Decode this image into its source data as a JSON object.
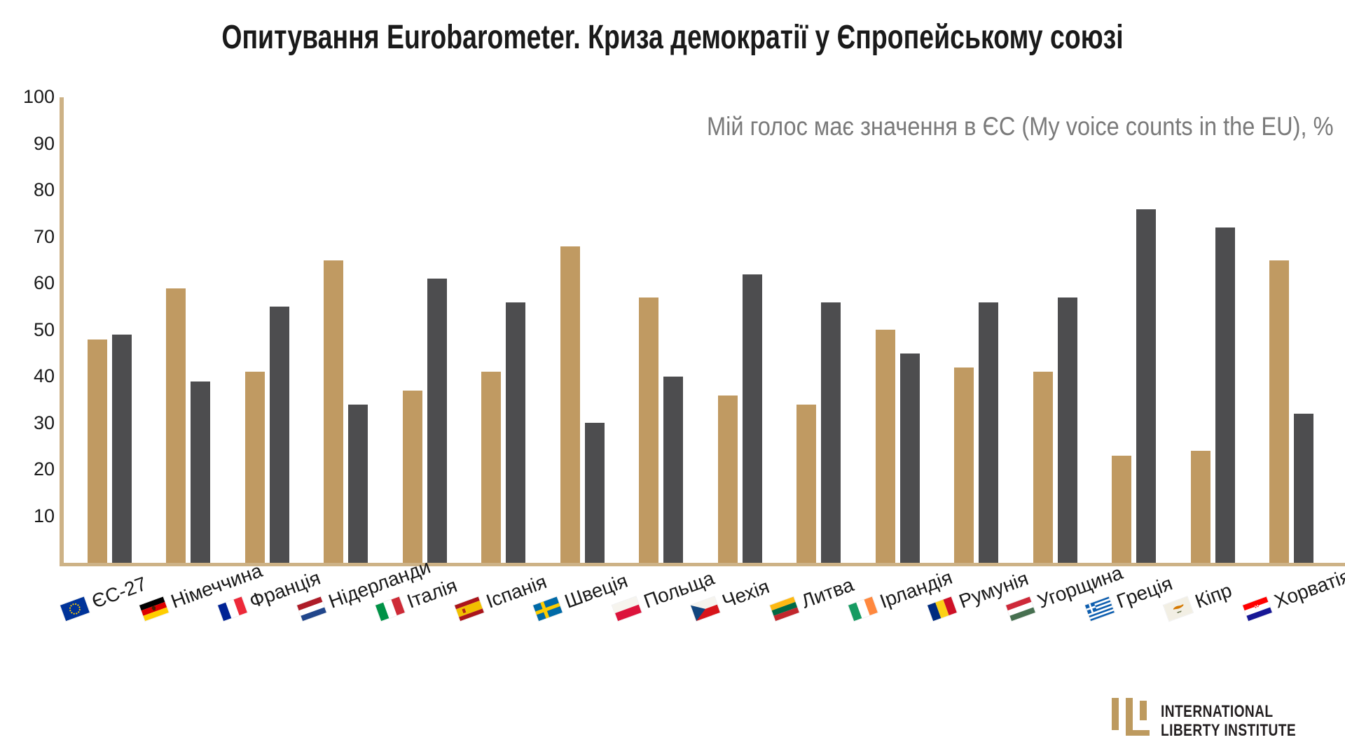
{
  "title": "Опитування Eurobarometer. Криза демократії у Єпропейському союзі",
  "subtitle": "Мій голос має значення в ЄС (My voice counts in the EU), %",
  "colors": {
    "series1_tan": "#C09A62",
    "series2_dark": "#4D4D4F",
    "axis_line": "#CDB286",
    "title_text": "#1A1A1A",
    "subtitle_text": "#7A7A7A",
    "logo_mark": "#BD9A5F",
    "logo_text": "#231F20"
  },
  "chart_data": {
    "type": "bar",
    "title": "Опитування Eurobarometer. Криза демократії у Єпропейському союзі",
    "annotation": "Мій голос має значення в ЄС (My voice counts in the EU), %",
    "ylim": [
      0,
      100
    ],
    "yticks": [
      10,
      20,
      30,
      40,
      50,
      60,
      70,
      80,
      90,
      100
    ],
    "grid": false,
    "legend": "none",
    "categories": [
      {
        "label": "ЄС-27",
        "flag": "flag-eu"
      },
      {
        "label": "Німеччина",
        "flag": "flag-germany"
      },
      {
        "label": "Франція",
        "flag": "flag-france"
      },
      {
        "label": "Нідерланди",
        "flag": "flag-netherlands"
      },
      {
        "label": "Італія",
        "flag": "flag-italy"
      },
      {
        "label": "Іспанія",
        "flag": "flag-spain"
      },
      {
        "label": "Швеція",
        "flag": "flag-sweden"
      },
      {
        "label": "Польща",
        "flag": "flag-poland"
      },
      {
        "label": "Чехія",
        "flag": "flag-czechia"
      },
      {
        "label": "Литва",
        "flag": "flag-lithuania"
      },
      {
        "label": "Ірландія",
        "flag": "flag-ireland"
      },
      {
        "label": "Румунія",
        "flag": "flag-romania"
      },
      {
        "label": "Угорщина",
        "flag": "flag-hungary"
      },
      {
        "label": "Греція",
        "flag": "flag-greece"
      },
      {
        "label": "Кіпр",
        "flag": "flag-cyprus"
      },
      {
        "label": "Хорватія",
        "flag": "flag-croatia"
      }
    ],
    "series": [
      {
        "name": "series_1",
        "color": "#C09A62",
        "values": [
          48,
          59,
          41,
          65,
          37,
          41,
          68,
          57,
          36,
          34,
          50,
          42,
          41,
          23,
          24,
          65
        ]
      },
      {
        "name": "series_2",
        "color": "#4D4D4F",
        "values": [
          49,
          39,
          55,
          34,
          61,
          56,
          30,
          40,
          62,
          56,
          45,
          56,
          57,
          76,
          72,
          32
        ]
      }
    ]
  },
  "logo": {
    "mark_icon": "ili-monogram-icon",
    "line1": "INTERNATIONAL",
    "line2": "LIBERTY INSTITUTE"
  }
}
